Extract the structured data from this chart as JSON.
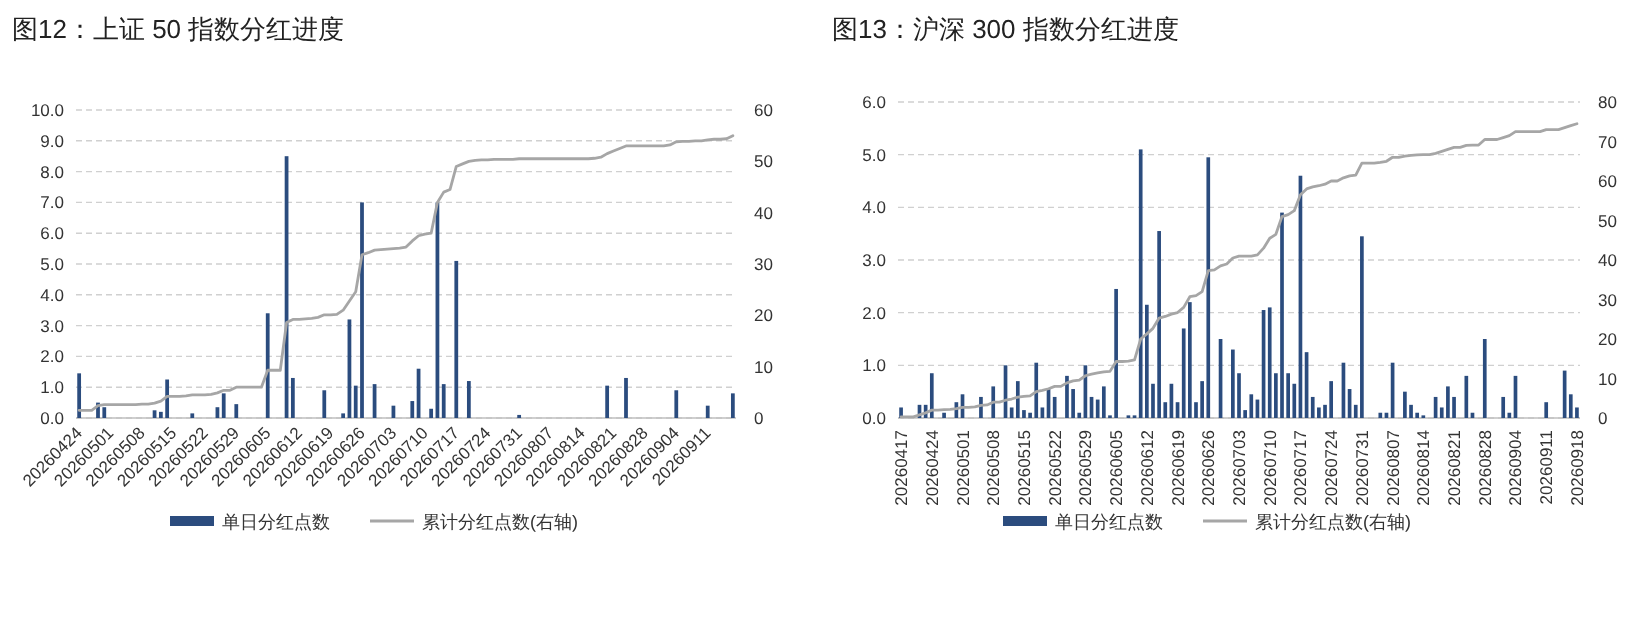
{
  "chart_data": [
    {
      "type": "bar",
      "title": "图12：上证 50 指数分红进度",
      "categories": [
        "20260424",
        null,
        null,
        null,
        null,
        "20260501",
        null,
        null,
        null,
        null,
        "20260508",
        null,
        null,
        null,
        null,
        "20260515",
        null,
        null,
        null,
        null,
        "20260522",
        null,
        null,
        null,
        null,
        "20260529",
        null,
        null,
        null,
        null,
        "20260605",
        null,
        null,
        null,
        null,
        "20260612",
        null,
        null,
        null,
        null,
        "20260619",
        null,
        null,
        null,
        null,
        "20260626",
        null,
        null,
        null,
        null,
        "20260703",
        null,
        null,
        null,
        null,
        "20260710",
        null,
        null,
        null,
        null,
        "20260717",
        null,
        null,
        null,
        null,
        "20260724",
        null,
        null,
        null,
        null,
        "20260731",
        null,
        null,
        null,
        null,
        "20260807",
        null,
        null,
        null,
        null,
        "20260814",
        null,
        null,
        null,
        null,
        "20260821",
        null,
        null,
        null,
        null,
        "20260828",
        null,
        null,
        null,
        null,
        "20260904",
        null,
        null,
        null,
        null,
        "20260911",
        null,
        null,
        null,
        null
      ],
      "series": [
        {
          "name": "单日分红点数",
          "color": "#2b4c7e",
          "values": [
            1.45,
            0,
            0,
            0.5,
            0.35,
            0,
            0,
            0,
            0,
            0,
            0,
            0,
            0.25,
            0.2,
            1.25,
            0,
            0,
            0,
            0.15,
            0,
            0,
            0,
            0.35,
            0.8,
            0,
            0.45,
            0,
            0,
            0,
            0,
            3.4,
            0,
            0,
            8.5,
            1.3,
            0,
            0,
            0,
            0,
            0.9,
            0,
            0,
            0.15,
            3.2,
            1.05,
            7.0,
            0,
            1.1,
            0,
            0,
            0.4,
            0,
            0,
            0.55,
            1.6,
            0,
            0.3,
            7.0,
            1.1,
            0,
            5.1,
            0,
            1.2,
            0,
            0,
            0,
            0,
            0,
            0,
            0,
            0.1,
            0,
            0,
            0,
            0,
            0,
            0,
            0,
            0,
            0,
            0,
            0,
            0,
            0,
            1.05,
            0,
            0,
            1.3,
            0,
            0,
            0,
            0,
            0,
            0,
            0,
            0.9,
            0,
            0,
            0,
            0,
            0.4,
            0,
            0,
            0,
            0.8
          ]
        },
        {
          "name": "累计分红点数(右轴)",
          "type": "line",
          "axis": "y2",
          "color": "#a6a6a6",
          "values": [
            1.5,
            1.5,
            1.5,
            2.4,
            2.6,
            2.6,
            2.6,
            2.6,
            2.6,
            2.6,
            2.7,
            2.7,
            2.9,
            3.3,
            4.2,
            4.2,
            4.2,
            4.3,
            4.5,
            4.5,
            4.5,
            4.6,
            4.9,
            5.4,
            5.4,
            6,
            6,
            6,
            6,
            6,
            9.3,
            9.3,
            9.3,
            18.6,
            19.2,
            19.2,
            19.3,
            19.4,
            19.6,
            20.1,
            20.1,
            20.2,
            21,
            22.8,
            24.6,
            31.8,
            32.2,
            32.7,
            32.8,
            32.9,
            33,
            33.1,
            33.3,
            34.5,
            35.5,
            35.8,
            36,
            42,
            44,
            44.5,
            49,
            49.5,
            50,
            50.2,
            50.3,
            50.3,
            50.4,
            50.4,
            50.4,
            50.4,
            50.5,
            50.5,
            50.5,
            50.5,
            50.5,
            50.5,
            50.5,
            50.5,
            50.5,
            50.5,
            50.5,
            50.5,
            50.6,
            50.8,
            51.5,
            52,
            52.5,
            53,
            53,
            53,
            53,
            53,
            53,
            53,
            53.2,
            53.8,
            53.9,
            53.9,
            54,
            54,
            54.2,
            54.3,
            54.3,
            54.4,
            55
          ]
        }
      ],
      "ylim": [
        0,
        10
      ],
      "yticks": [
        {
          "value": 0,
          "label": "0.0"
        },
        {
          "value": 1,
          "label": "1.0"
        },
        {
          "value": 2,
          "label": "2.0"
        },
        {
          "value": 3,
          "label": "3.0"
        },
        {
          "value": 4,
          "label": "4.0"
        },
        {
          "value": 5,
          "label": "5.0"
        },
        {
          "value": 6,
          "label": "6.0"
        },
        {
          "value": 7,
          "label": "7.0"
        },
        {
          "value": 8,
          "label": "8.0"
        },
        {
          "value": 9,
          "label": "9.0"
        },
        {
          "value": 10,
          "label": "10.0"
        }
      ],
      "y2lim": [
        0,
        60
      ],
      "y2ticks": [
        0,
        10,
        20,
        30,
        40,
        50,
        60
      ],
      "grid": "y",
      "legend": "bottom"
    },
    {
      "type": "bar",
      "title": "图13：沪深 300 指数分红进度",
      "categories": [
        "20260417",
        null,
        null,
        null,
        null,
        "20260424",
        null,
        null,
        null,
        null,
        "20260501",
        null,
        null,
        null,
        null,
        "20260508",
        null,
        null,
        null,
        null,
        "20260515",
        null,
        null,
        null,
        null,
        "20260522",
        null,
        null,
        null,
        null,
        "20260529",
        null,
        null,
        null,
        null,
        "20260605",
        null,
        null,
        null,
        null,
        "20260612",
        null,
        null,
        null,
        null,
        "20260619",
        null,
        null,
        null,
        null,
        "20260626",
        null,
        null,
        null,
        null,
        "20260703",
        null,
        null,
        null,
        null,
        "20260710",
        null,
        null,
        null,
        null,
        "20260717",
        null,
        null,
        null,
        null,
        "20260724",
        null,
        null,
        null,
        null,
        "20260731",
        null,
        null,
        null,
        null,
        "20260807",
        null,
        null,
        null,
        null,
        "20260814",
        null,
        null,
        null,
        null,
        "20260821",
        null,
        null,
        null,
        null,
        "20260828",
        null,
        null,
        null,
        null,
        "20260904",
        null,
        null,
        null,
        null,
        "20260911",
        null,
        null,
        null,
        null,
        "20260918"
      ],
      "series": [
        {
          "name": "单日分红点数",
          "color": "#2b4c7e",
          "values": [
            0.2,
            0,
            0,
            0.25,
            0.25,
            0.85,
            0,
            0.1,
            0,
            0.3,
            0.45,
            0,
            0,
            0.4,
            0,
            0.6,
            0,
            1.0,
            0.2,
            0.7,
            0.15,
            0.1,
            1.05,
            0.2,
            0.55,
            0.4,
            0,
            0.8,
            0.55,
            0.1,
            1.0,
            0.4,
            0.35,
            0.6,
            0.05,
            2.45,
            0,
            0.05,
            0.05,
            5.1,
            2.15,
            0.65,
            3.55,
            0.3,
            0.65,
            0.3,
            1.7,
            2.2,
            0.3,
            0.7,
            4.95,
            0,
            1.5,
            0,
            1.3,
            0.85,
            0.15,
            0.45,
            0.35,
            2.05,
            2.1,
            0.85,
            3.9,
            0.85,
            0.65,
            4.6,
            1.25,
            0.4,
            0.2,
            0.25,
            0.7,
            0,
            1.05,
            0.55,
            0.25,
            3.45,
            0,
            0,
            0.1,
            0.1,
            1.05,
            0,
            0.5,
            0.25,
            0.1,
            0.05,
            0,
            0.4,
            0.2,
            0.6,
            0.4,
            0,
            0.8,
            0.1,
            0,
            1.5,
            0,
            0,
            0.4,
            0.1,
            0.8,
            0,
            0,
            0,
            0,
            0.3,
            0,
            0,
            0.9,
            0.45,
            0.2
          ]
        },
        {
          "name": "累计分红点数(右轴)",
          "type": "line",
          "axis": "y2",
          "color": "#a6a6a6",
          "values": [
            0.3,
            0.3,
            0.3,
            0.8,
            1.3,
            2,
            2,
            2.1,
            2.2,
            2.4,
            2.7,
            2.7,
            2.8,
            3.2,
            3.3,
            4,
            4,
            4.5,
            4.8,
            5.3,
            5.5,
            5.6,
            6.7,
            7,
            7.4,
            8,
            8,
            8.9,
            9.4,
            9.6,
            10.7,
            11.1,
            11.4,
            11.7,
            11.8,
            14.3,
            14.3,
            14.4,
            14.7,
            20,
            21.3,
            22.7,
            25.3,
            25.7,
            26.3,
            26.7,
            28,
            30.7,
            31,
            32,
            37.3,
            37.5,
            38.5,
            39,
            40.5,
            41,
            41,
            41,
            41.3,
            43,
            45.5,
            46.5,
            51,
            51.5,
            52.5,
            56.5,
            58,
            58.5,
            58.8,
            59.2,
            60,
            60,
            60.8,
            61.3,
            61.5,
            64.5,
            64.5,
            64.5,
            64.7,
            65,
            66,
            66,
            66.3,
            66.5,
            66.6,
            66.7,
            66.7,
            67,
            67.5,
            68,
            68.5,
            68.5,
            69,
            69.1,
            69.1,
            70.5,
            70.5,
            70.5,
            71,
            71.5,
            72.5,
            72.5,
            72.5,
            72.5,
            72.5,
            73,
            73,
            73,
            73.5,
            74,
            74.5
          ]
        }
      ],
      "ylim": [
        0,
        6
      ],
      "yticks": [
        {
          "value": 0,
          "label": "0.0"
        },
        {
          "value": 1,
          "label": "1.0"
        },
        {
          "value": 2,
          "label": "2.0"
        },
        {
          "value": 3,
          "label": "3.0"
        },
        {
          "value": 4,
          "label": "4.0"
        },
        {
          "value": 5,
          "label": "5.0"
        },
        {
          "value": 6,
          "label": "6.0"
        }
      ],
      "y2lim": [
        0,
        80
      ],
      "y2ticks": [
        0,
        10,
        20,
        30,
        40,
        50,
        60,
        70,
        80
      ],
      "grid": "y",
      "legend": "bottom"
    }
  ]
}
